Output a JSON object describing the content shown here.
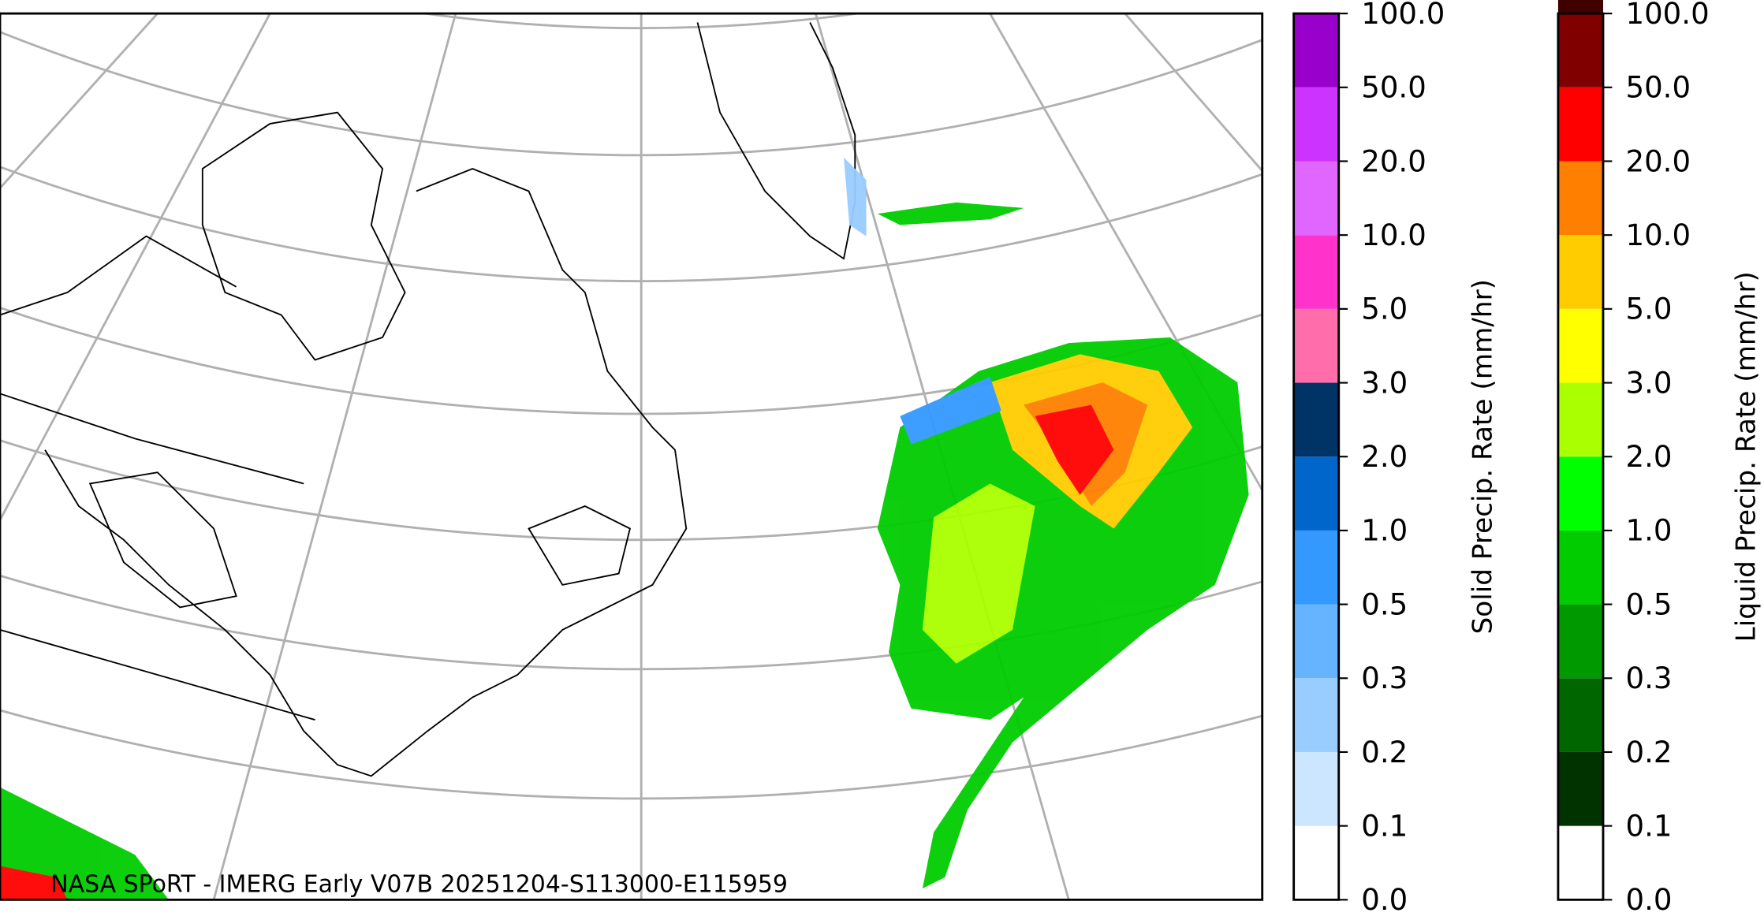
{
  "map": {
    "footer": "NASA SPoRT - IMERG Early V07B 20251204-S113000-E115959"
  },
  "solid_colorbar": {
    "label": "Solid Precip. Rate (mm/hr)",
    "ticks": [
      "0.0",
      "0.1",
      "0.2",
      "0.3",
      "0.5",
      "1.0",
      "2.0",
      "3.0",
      "5.0",
      "10.0",
      "20.0",
      "50.0",
      "100.0"
    ],
    "colors": [
      "#ffffff",
      "#cce6ff",
      "#99ccff",
      "#66b3ff",
      "#3399ff",
      "#0066cc",
      "#003366",
      "#ff6eaa",
      "#ff33cc",
      "#e066ff",
      "#cc33ff",
      "#9900cc"
    ]
  },
  "liquid_colorbar": {
    "label": "Liquid Precip. Rate (mm/hr)",
    "ticks": [
      "0.0",
      "0.1",
      "0.2",
      "0.3",
      "0.5",
      "1.0",
      "2.0",
      "3.0",
      "5.0",
      "10.0",
      "20.0",
      "50.0",
      "100.0"
    ],
    "colors": [
      "#ffffff",
      "#003300",
      "#006600",
      "#009900",
      "#00cc00",
      "#00ff00",
      "#aaff00",
      "#ffff00",
      "#ffcc00",
      "#ff8000",
      "#ff0000",
      "#800000",
      "#400000"
    ]
  }
}
